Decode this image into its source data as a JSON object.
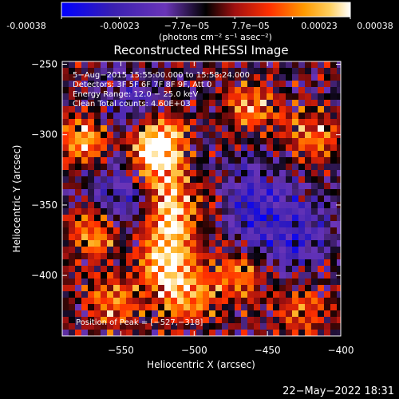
{
  "colorbar": {
    "ticks": [
      "-0.00038",
      "-0.00023",
      "−7.7e−05",
      "7.7e−05",
      "0.00023",
      "0.00038"
    ],
    "unit_label": "(photons cm⁻² s⁻¹ asec⁻²)",
    "colors": [
      "#0000ff",
      "#3a20b0",
      "#6a35b8",
      "#000000",
      "#a01010",
      "#ff3000",
      "#ff9a00",
      "#ffd060",
      "#ffffff"
    ]
  },
  "chart_data": {
    "type": "heatmap",
    "title": "Reconstructed RHESSI Image",
    "xlabel": "Heliocentric X (arcsec)",
    "ylabel": "Heliocentric Y (arcsec)",
    "xlim": [
      -590,
      -400
    ],
    "ylim": [
      -443,
      -248
    ],
    "x_ticks": [
      -550,
      -500,
      -450,
      -400
    ],
    "y_ticks": [
      -250,
      -300,
      -350,
      -400
    ],
    "x_tick_labels": [
      "−550",
      "−500",
      "−450",
      "−400"
    ],
    "y_tick_labels": [
      "−250",
      "−300",
      "−350",
      "−400"
    ],
    "annotations": [
      "5−Aug−2015 15:55:00.000 to 15:58:24.000",
      "Detectors: 3F 5F 6F 7F 8F 9F, Att 0",
      "Energy Range: 12.0 − 25.0 keV",
      "Clean     Total counts: 4.60E+03"
    ],
    "peak_label": "Position of Peak = [−527,−318]",
    "peak": [
      -527,
      -318
    ],
    "bright_sources": [
      {
        "x": -527,
        "y": -318,
        "level": 1.0
      },
      {
        "x": -525,
        "y": -300,
        "level": 0.95
      },
      {
        "x": -520,
        "y": -345,
        "level": 0.85
      },
      {
        "x": -515,
        "y": -370,
        "level": 0.8
      },
      {
        "x": -520,
        "y": -395,
        "level": 0.8
      },
      {
        "x": -505,
        "y": -415,
        "level": 0.7
      },
      {
        "x": -575,
        "y": -305,
        "level": 0.75
      },
      {
        "x": -570,
        "y": -370,
        "level": 0.7
      },
      {
        "x": -555,
        "y": -420,
        "level": 0.65
      },
      {
        "x": -460,
        "y": -280,
        "level": 0.6
      },
      {
        "x": -470,
        "y": -400,
        "level": 0.6
      },
      {
        "x": -420,
        "y": -300,
        "level": 0.55
      },
      {
        "x": -425,
        "y": -425,
        "level": 0.55
      },
      {
        "x": -485,
        "y": -345,
        "level": 0.55
      }
    ],
    "dim_regions": [
      {
        "x": -545,
        "y": -340,
        "level": -0.6
      },
      {
        "x": -470,
        "y": -345,
        "level": -0.7
      },
      {
        "x": -435,
        "y": -370,
        "level": -0.6
      },
      {
        "x": -540,
        "y": -285,
        "level": -0.5
      }
    ]
  },
  "footer": {
    "timestamp": "22−May−2022 18:31"
  }
}
